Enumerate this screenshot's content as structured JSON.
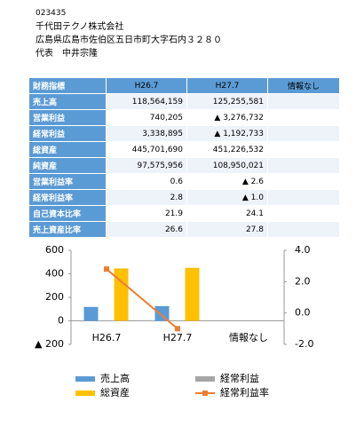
{
  "header": {
    "code": "023435",
    "company": "千代田テクノ株式会社",
    "address": "広島県広島市佐伯区五日市町大字石内３２８０",
    "representative": "代表　中井宗隆"
  },
  "table": {
    "header": [
      "財務指標",
      "H26.7",
      "H27.7",
      "情報なし"
    ],
    "rows": [
      [
        "売上高",
        "118,564,159",
        "125,255,581"
      ],
      [
        "営業利益",
        "740,205",
        "▲ 3,276,732"
      ],
      [
        "経常利益",
        "3,338,895",
        "▲ 1,192,733"
      ],
      [
        "総資産",
        "445,701,690",
        "451,226,532"
      ],
      [
        "純資産",
        "97,575,956",
        "108,950,021"
      ],
      [
        "営業利益率",
        "0.6",
        "▲ 2.6"
      ],
      [
        "経常利益率",
        "2.8",
        "▲ 1.0"
      ],
      [
        "自己資本比率",
        "21.9",
        "24.1"
      ],
      [
        "売上資産比率",
        "26.6",
        "27.8"
      ]
    ]
  },
  "chart_data": {
    "type": "bar",
    "categories": [
      "H26.7",
      "H27.7",
      "情報なし"
    ],
    "series": [
      {
        "name": "売上高",
        "color": "#5b9bd5",
        "values": [
          118.6,
          125.3,
          null
        ]
      },
      {
        "name": "経常利益",
        "color": "#a5a5a5",
        "values": [
          3.3,
          -1.2,
          null
        ]
      },
      {
        "name": "総資産",
        "color": "#ffc000",
        "values": [
          445.7,
          451.2,
          null
        ]
      },
      {
        "name": "経常利益率",
        "color": "#ed7d31",
        "type": "line",
        "axis": "y2",
        "values": [
          2.8,
          -1.0,
          null
        ]
      }
    ],
    "ylim": [
      -200,
      600
    ],
    "yticks": [
      600,
      400,
      200,
      0,
      {
        "value": -200,
        "label": "▲ 200"
      }
    ],
    "y2lim": [
      -2,
      4
    ],
    "y2ticks": [
      {
        "value": 4,
        "label": "4.0"
      },
      {
        "value": 2,
        "label": "2.0"
      },
      {
        "value": 0,
        "label": "0.0"
      },
      {
        "value": -2,
        "label": "-2.0"
      }
    ]
  }
}
